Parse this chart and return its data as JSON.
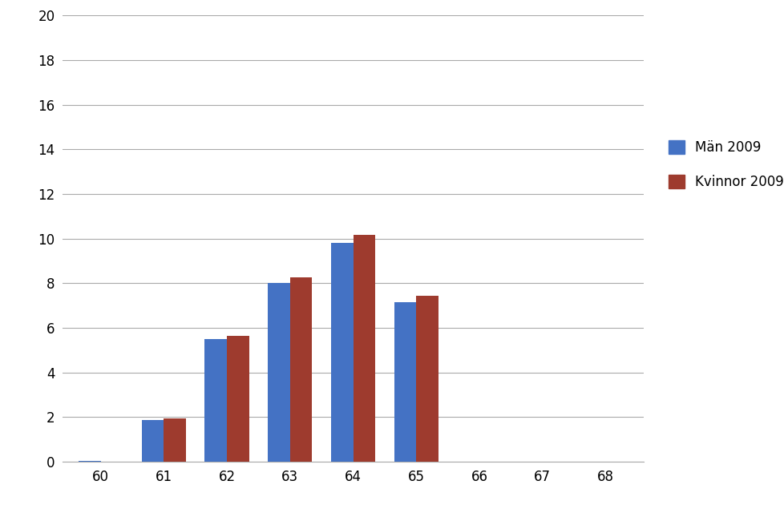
{
  "categories": [
    60,
    61,
    62,
    63,
    64,
    65,
    66,
    67,
    68
  ],
  "man_values": [
    0.05,
    1.85,
    5.5,
    8.0,
    9.8,
    7.15,
    0,
    0,
    0
  ],
  "kvinnor_values": [
    0,
    1.95,
    5.65,
    8.25,
    10.15,
    7.45,
    0,
    0,
    0
  ],
  "man_color": "#4472C4",
  "kvinnor_color": "#9E3B2E",
  "man_label": "Män 2009",
  "kvinnor_label": "Kvinnor 2009",
  "ylim": [
    0,
    20
  ],
  "yticks": [
    0,
    2,
    4,
    6,
    8,
    10,
    12,
    14,
    16,
    18,
    20
  ],
  "bar_width": 0.35,
  "background_color": "#ffffff",
  "grid_color": "#aaaaaa",
  "spine_color": "#aaaaaa",
  "tick_fontsize": 12,
  "legend_fontsize": 12
}
